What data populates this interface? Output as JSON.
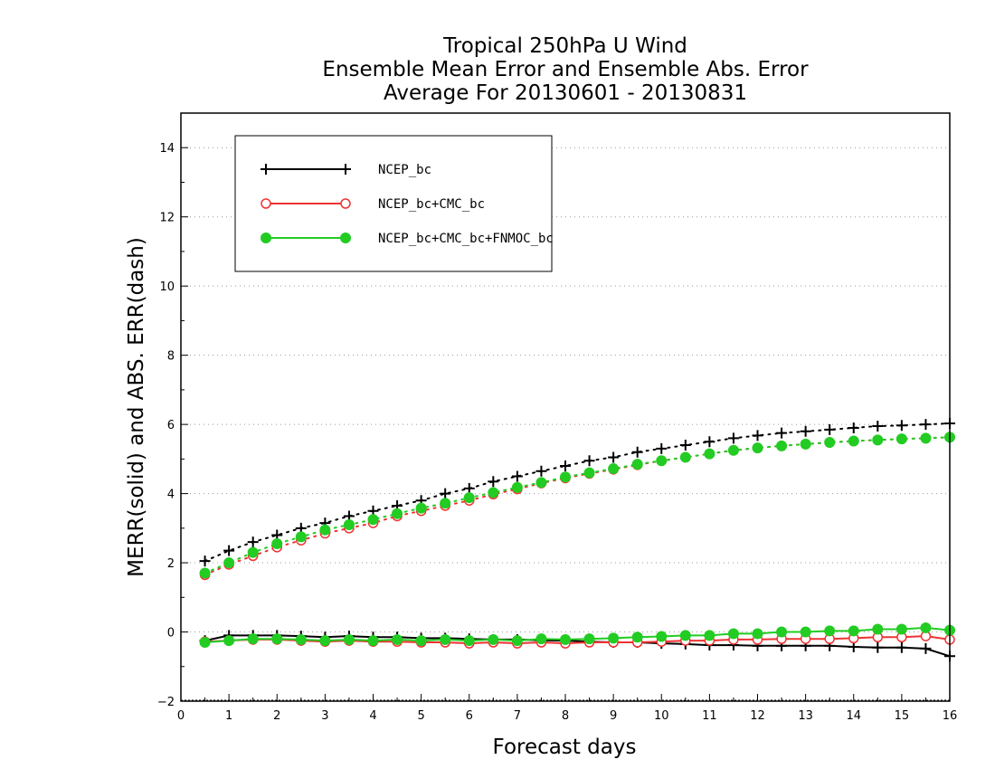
{
  "chart_data": {
    "type": "line",
    "title": [
      "Tropical 250hPa U Wind",
      "Ensemble Mean Error and Ensemble Abs. Error",
      "Average For 20130601 - 20130831"
    ],
    "xlabel": "Forecast days",
    "ylabel": "MERR(solid) and ABS. ERR(dash)",
    "xlim": [
      0,
      16
    ],
    "ylim": [
      -2,
      15
    ],
    "xticks": [
      0,
      1,
      2,
      3,
      4,
      5,
      6,
      7,
      8,
      9,
      10,
      11,
      12,
      13,
      14,
      15,
      16
    ],
    "yticks": [
      -2,
      0,
      2,
      4,
      6,
      8,
      10,
      12,
      14
    ],
    "grid": "horizontal dotted",
    "legend_position": "top-left",
    "x": [
      0.5,
      1,
      1.5,
      2,
      2.5,
      3,
      3.5,
      4,
      4.5,
      5,
      5.5,
      6,
      6.5,
      7,
      7.5,
      8,
      8.5,
      9,
      9.5,
      10,
      10.5,
      11,
      11.5,
      12,
      12.5,
      13,
      13.5,
      14,
      14.5,
      15,
      15.5,
      16
    ],
    "series": [
      {
        "name": "NCEP_bc",
        "color": "#000000",
        "marker": "plus",
        "merr": [
          -0.25,
          -0.1,
          -0.1,
          -0.1,
          -0.12,
          -0.15,
          -0.12,
          -0.15,
          -0.15,
          -0.18,
          -0.18,
          -0.2,
          -0.22,
          -0.22,
          -0.24,
          -0.25,
          -0.28,
          -0.3,
          -0.3,
          -0.33,
          -0.35,
          -0.38,
          -0.38,
          -0.4,
          -0.4,
          -0.4,
          -0.4,
          -0.43,
          -0.45,
          -0.45,
          -0.48,
          -0.7
        ],
        "abs_err": [
          2.05,
          2.35,
          2.6,
          2.8,
          3.0,
          3.15,
          3.35,
          3.5,
          3.65,
          3.8,
          4.0,
          4.15,
          4.35,
          4.5,
          4.65,
          4.8,
          4.95,
          5.05,
          5.2,
          5.3,
          5.4,
          5.5,
          5.6,
          5.68,
          5.75,
          5.8,
          5.85,
          5.9,
          5.95,
          5.97,
          6.0,
          6.03
        ]
      },
      {
        "name": "NCEP_bc+CMC_bc",
        "color": "#ee3333",
        "marker": "open-circle",
        "merr": [
          -0.28,
          -0.25,
          -0.22,
          -0.22,
          -0.25,
          -0.28,
          -0.25,
          -0.28,
          -0.28,
          -0.3,
          -0.3,
          -0.33,
          -0.3,
          -0.33,
          -0.3,
          -0.33,
          -0.3,
          -0.3,
          -0.3,
          -0.28,
          -0.25,
          -0.25,
          -0.22,
          -0.22,
          -0.2,
          -0.2,
          -0.2,
          -0.18,
          -0.15,
          -0.15,
          -0.12,
          -0.22
        ],
        "abs_err": [
          1.65,
          1.95,
          2.2,
          2.45,
          2.65,
          2.85,
          3.0,
          3.15,
          3.35,
          3.5,
          3.65,
          3.8,
          3.98,
          4.13,
          4.3,
          4.45,
          4.58,
          4.7,
          4.83,
          4.95,
          5.05,
          5.15,
          5.25,
          5.32,
          5.38,
          5.43,
          5.48,
          5.52,
          5.55,
          5.58,
          5.6,
          5.63
        ]
      },
      {
        "name": "NCEP_bc+CMC_bc+FNMOC_bc",
        "color": "#22cc22",
        "marker": "filled-circle",
        "merr": [
          -0.3,
          -0.25,
          -0.2,
          -0.2,
          -0.22,
          -0.25,
          -0.22,
          -0.25,
          -0.22,
          -0.25,
          -0.22,
          -0.25,
          -0.22,
          -0.25,
          -0.2,
          -0.22,
          -0.2,
          -0.18,
          -0.15,
          -0.13,
          -0.1,
          -0.1,
          -0.05,
          -0.05,
          0.0,
          0.0,
          0.03,
          0.03,
          0.08,
          0.08,
          0.12,
          0.05
        ],
        "abs_err": [
          1.7,
          2.0,
          2.3,
          2.55,
          2.75,
          2.95,
          3.1,
          3.25,
          3.42,
          3.58,
          3.72,
          3.88,
          4.03,
          4.18,
          4.32,
          4.48,
          4.6,
          4.72,
          4.85,
          4.95,
          5.05,
          5.15,
          5.25,
          5.32,
          5.38,
          5.43,
          5.48,
          5.52,
          5.55,
          5.58,
          5.6,
          5.63
        ]
      }
    ]
  }
}
